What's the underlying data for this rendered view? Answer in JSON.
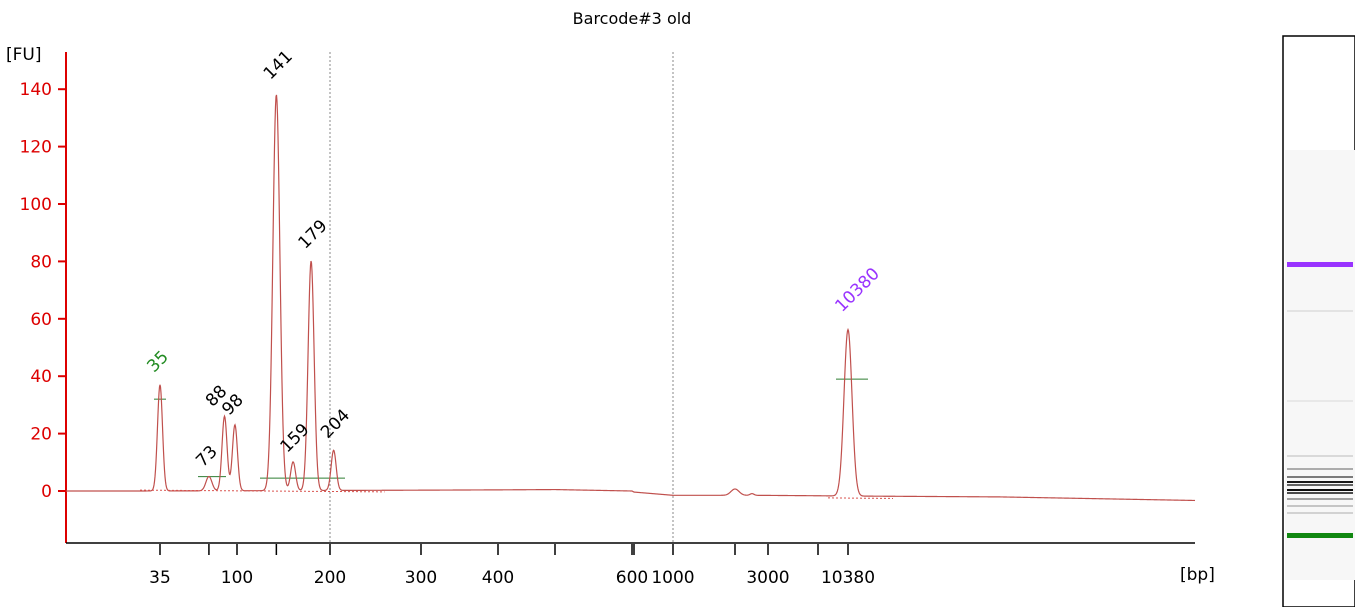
{
  "chart_data": {
    "type": "line",
    "title": "Barcode#3 old",
    "ylabel": "[FU]",
    "xlabel": "[bp]",
    "ylim": [
      -18,
      150
    ],
    "yticks": [
      0,
      20,
      40,
      60,
      80,
      100,
      120,
      140
    ],
    "xtick_labels": [
      "35",
      "100",
      "200",
      "300",
      "400",
      "600",
      "1000",
      "3000",
      "10380"
    ],
    "grid": "dotted vertical lines at 200 and 1000",
    "colors": {
      "axis": "#dd0000",
      "trace": "#c0504d",
      "baseline": "#d9534f",
      "region": "#2e7d32",
      "lower_marker": "#228b22",
      "upper_marker": "#9933ff",
      "peak_default": "#000000",
      "gel_upper": "#9933ff",
      "gel_lower": "#118811"
    },
    "peaks": [
      {
        "label": "35",
        "bp": 35,
        "fu": 37,
        "color": "#228b22"
      },
      {
        "label": "73",
        "bp": 73,
        "fu": 5,
        "color": "#000000"
      },
      {
        "label": "88",
        "bp": 88,
        "fu": 26,
        "color": "#000000"
      },
      {
        "label": "98",
        "bp": 98,
        "fu": 23,
        "color": "#000000"
      },
      {
        "label": "141",
        "bp": 141,
        "fu": 138,
        "color": "#000000"
      },
      {
        "label": "159",
        "bp": 159,
        "fu": 10,
        "color": "#000000"
      },
      {
        "label": "179",
        "bp": 179,
        "fu": 80,
        "color": "#000000"
      },
      {
        "label": "204",
        "bp": 204,
        "fu": 14,
        "color": "#000000"
      },
      {
        "label": "10380",
        "bp": 10380,
        "fu": 58,
        "color": "#9933ff"
      }
    ]
  }
}
